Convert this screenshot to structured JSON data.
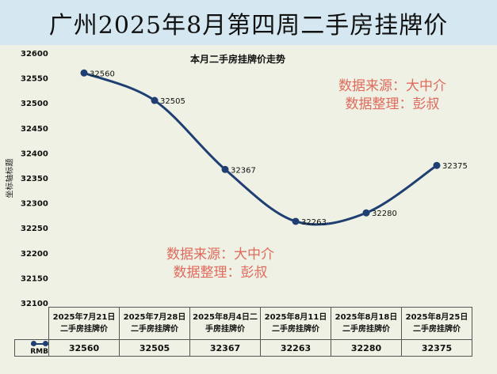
{
  "title": "广州2025年8月第四周二手房挂牌价",
  "watermark": {
    "line1": "数据来源：大中介",
    "line2": "数据整理：彭叔"
  },
  "chart_data": {
    "type": "line",
    "title": "本月二手房挂牌价走势",
    "ylabel": "坐标轴标题",
    "ylim": [
      32100,
      32600
    ],
    "yticks": [
      32100,
      32150,
      32200,
      32250,
      32300,
      32350,
      32400,
      32450,
      32500,
      32550,
      32600
    ],
    "categories": [
      "2025年7月21日二手房挂牌价",
      "2025年7月28日二手房挂牌价",
      "2025年8月4日二手房挂牌价",
      "2025年8月11日二手房挂牌价",
      "2025年8月18日二手房挂牌价",
      "2025年8月25日二手房挂牌价"
    ],
    "category_lines": [
      [
        "2025年7月21日",
        "二手房挂牌价"
      ],
      [
        "2025年7月28日",
        "二手房挂牌价"
      ],
      [
        "2025年8月4日二",
        "手房挂牌价"
      ],
      [
        "2025年8月11日",
        "二手房挂牌价"
      ],
      [
        "2025年8月18日",
        "二手房挂牌价"
      ],
      [
        "2025年8月25日",
        "二手房挂牌价"
      ]
    ],
    "series": [
      {
        "name": "RMB",
        "values": [
          32560,
          32505,
          32367,
          32263,
          32280,
          32375
        ],
        "color": "#1f3f73"
      }
    ],
    "grid": false,
    "legend": "data-table"
  }
}
